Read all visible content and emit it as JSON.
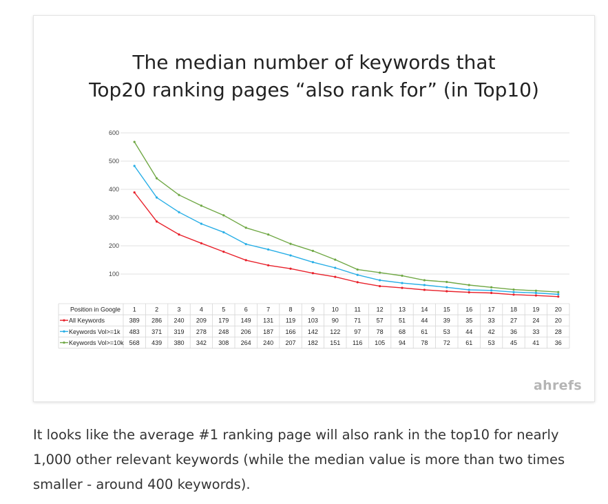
{
  "chart_data": {
    "type": "line",
    "title_lines": [
      "The median number of keywords that",
      "Top20 ranking pages “also rank for” (in Top10)"
    ],
    "y_ticks": [
      100,
      200,
      300,
      400,
      500,
      600
    ],
    "ylim": [
      0,
      600
    ],
    "table_header": "Position in Google",
    "x": [
      1,
      2,
      3,
      4,
      5,
      6,
      7,
      8,
      9,
      10,
      11,
      12,
      13,
      14,
      15,
      16,
      17,
      18,
      19,
      20
    ],
    "series": [
      {
        "name": "All Keywords",
        "color": "#e8202a",
        "values": [
          389,
          286,
          240,
          209,
          179,
          149,
          131,
          119,
          103,
          90,
          71,
          57,
          51,
          44,
          39,
          35,
          33,
          27,
          24,
          20
        ]
      },
      {
        "name": "Keywords Vol>=1k",
        "color": "#27aee6",
        "values": [
          483,
          371,
          319,
          278,
          248,
          206,
          187,
          166,
          142,
          122,
          97,
          78,
          68,
          61,
          53,
          44,
          42,
          36,
          33,
          28
        ]
      },
      {
        "name": "Keywords Vol>=10k",
        "color": "#70a845",
        "values": [
          568,
          439,
          380,
          342,
          308,
          264,
          240,
          207,
          182,
          151,
          116,
          105,
          94,
          78,
          72,
          61,
          53,
          45,
          41,
          36
        ]
      }
    ],
    "grid": "horizontal"
  },
  "watermark": "ahrefs",
  "caption": "It looks like the average #1 ranking page will also rank in the top10 for nearly 1,000 other relevant keywords (while the median value is more than two times smaller - around 400 keywords)."
}
